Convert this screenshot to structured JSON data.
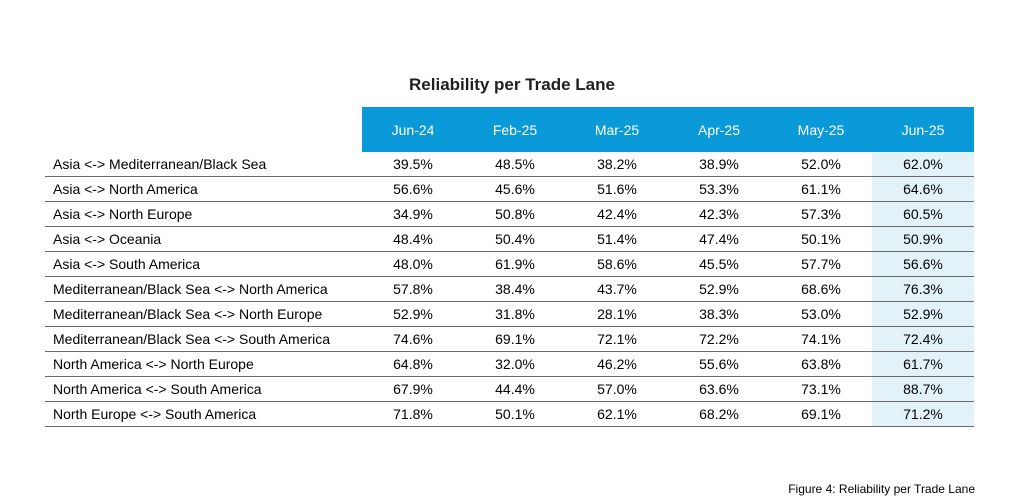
{
  "chart_data": {
    "type": "table",
    "title": "Reliability per Trade Lane",
    "caption": "Figure 4: Reliability per Trade Lane",
    "columns": [
      "Jun-24",
      "Feb-25",
      "Mar-25",
      "Apr-25",
      "May-25",
      "Jun-25"
    ],
    "highlight_column": "Jun-25",
    "rows": [
      {
        "lane": "Asia <-> Mediterranean/Black Sea",
        "values": [
          "39.5%",
          "48.5%",
          "38.2%",
          "38.9%",
          "52.0%",
          "62.0%"
        ]
      },
      {
        "lane": "Asia <-> North America",
        "values": [
          "56.6%",
          "45.6%",
          "51.6%",
          "53.3%",
          "61.1%",
          "64.6%"
        ]
      },
      {
        "lane": "Asia <-> North Europe",
        "values": [
          "34.9%",
          "50.8%",
          "42.4%",
          "42.3%",
          "57.3%",
          "60.5%"
        ]
      },
      {
        "lane": "Asia <-> Oceania",
        "values": [
          "48.4%",
          "50.4%",
          "51.4%",
          "47.4%",
          "50.1%",
          "50.9%"
        ]
      },
      {
        "lane": "Asia <-> South America",
        "values": [
          "48.0%",
          "61.9%",
          "58.6%",
          "45.5%",
          "57.7%",
          "56.6%"
        ]
      },
      {
        "lane": "Mediterranean/Black Sea <-> North America",
        "values": [
          "57.8%",
          "38.4%",
          "43.7%",
          "52.9%",
          "68.6%",
          "76.3%"
        ]
      },
      {
        "lane": "Mediterranean/Black Sea <-> North Europe",
        "values": [
          "52.9%",
          "31.8%",
          "28.1%",
          "38.3%",
          "53.0%",
          "52.9%"
        ]
      },
      {
        "lane": "Mediterranean/Black Sea <-> South America",
        "values": [
          "74.6%",
          "69.1%",
          "72.1%",
          "72.2%",
          "74.1%",
          "72.4%"
        ]
      },
      {
        "lane": "North America <-> North Europe",
        "values": [
          "64.8%",
          "32.0%",
          "46.2%",
          "55.6%",
          "63.8%",
          "61.7%"
        ]
      },
      {
        "lane": "North America <-> South America",
        "values": [
          "67.9%",
          "44.4%",
          "57.0%",
          "63.6%",
          "73.1%",
          "88.7%"
        ]
      },
      {
        "lane": "North Europe <-> South America",
        "values": [
          "71.8%",
          "50.1%",
          "62.1%",
          "68.2%",
          "69.1%",
          "71.2%"
        ]
      }
    ],
    "colors": {
      "header_bg": "#0a99d9",
      "header_text": "#ffffff",
      "highlight_bg": "#e3f2f9",
      "row_rule": "#6b6b6b"
    }
  }
}
